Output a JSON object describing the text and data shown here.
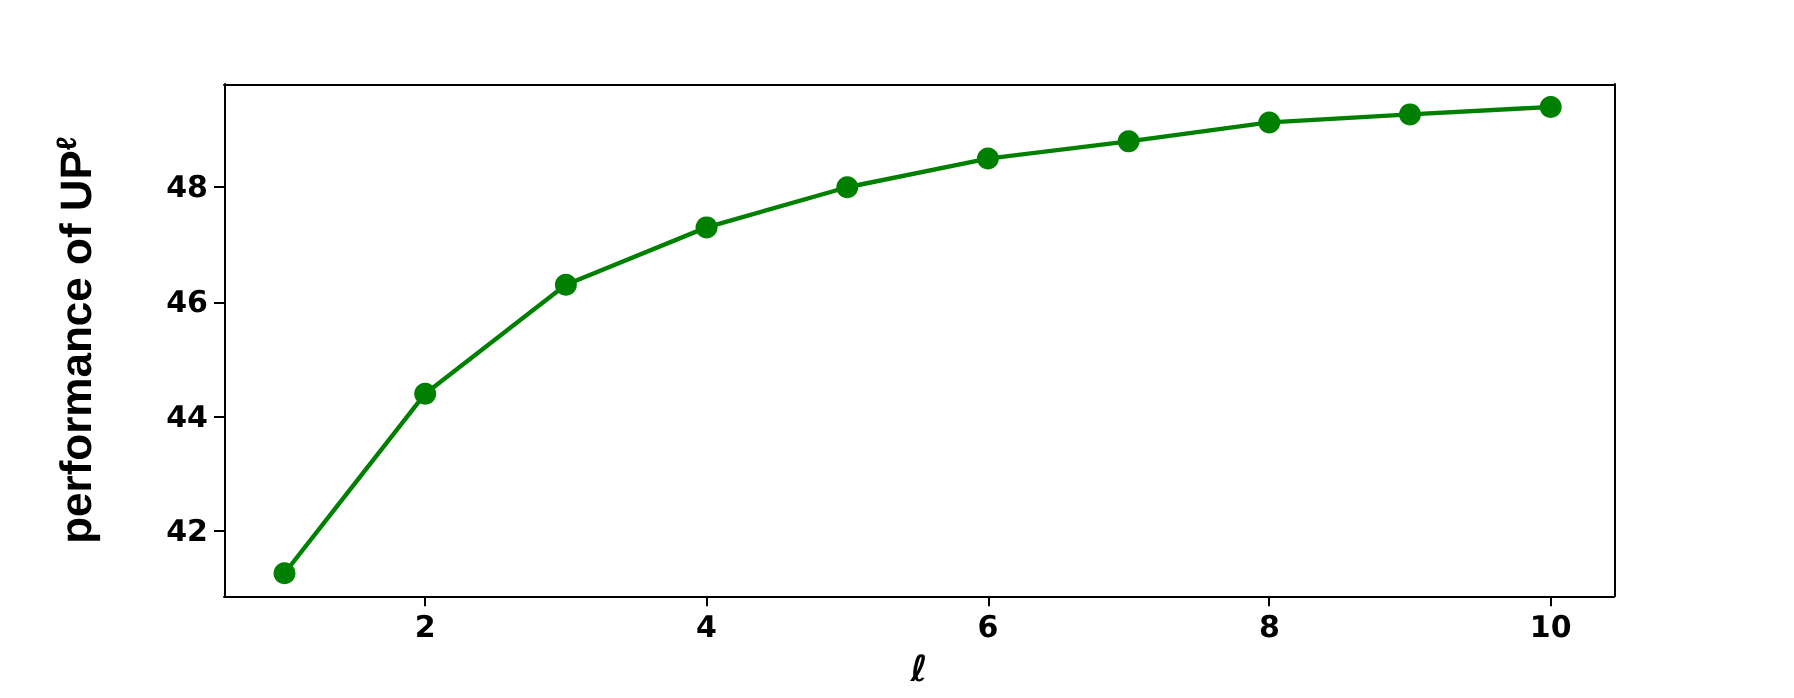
{
  "chart_data": {
    "type": "line",
    "xlabel": "ℓ",
    "ylabel": "performance of UP$^{ℓ}$",
    "x": [
      1,
      2,
      3,
      4,
      5,
      6,
      7,
      8,
      9,
      10
    ],
    "series": [
      {
        "color": "#008000",
        "values": [
          41.27,
          44.4,
          46.3,
          47.3,
          48.0,
          48.5,
          48.8,
          49.13,
          49.27,
          49.4
        ]
      }
    ],
    "xlim": [
      0.57,
      10.45
    ],
    "xticks": [
      2,
      4,
      6,
      8,
      10
    ],
    "ylim": [
      40.87,
      49.8
    ],
    "yticks": [
      42,
      44,
      46,
      48
    ],
    "marker": "circle",
    "line_style": "solid",
    "grid": false
  }
}
